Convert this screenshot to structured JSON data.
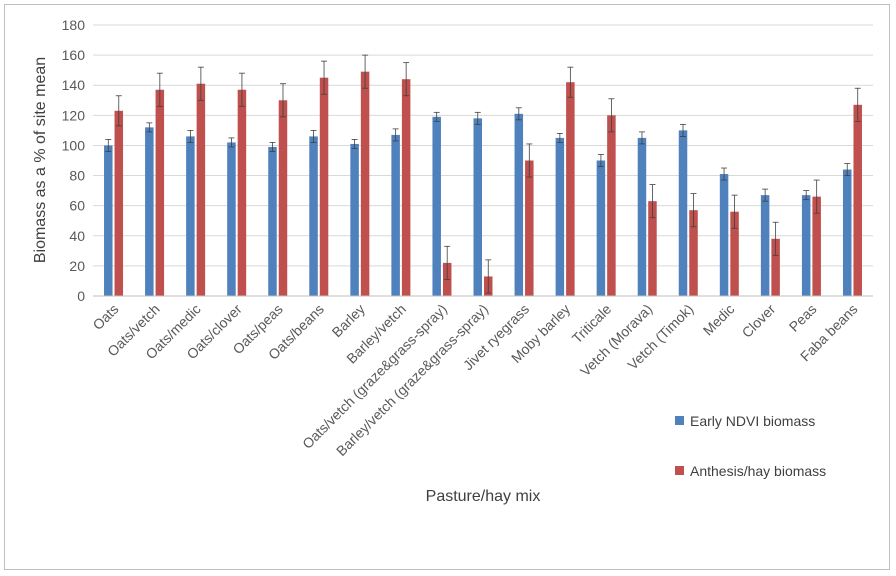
{
  "chart_data": {
    "type": "bar",
    "title": "",
    "xlabel": "Pasture/hay mix",
    "ylabel": "Biomass as a % of site mean",
    "ylim": [
      0,
      180
    ],
    "yticks": [
      0,
      20,
      40,
      60,
      80,
      100,
      120,
      140,
      160,
      180
    ],
    "grid": true,
    "legend_position": "right",
    "error_bars": true,
    "categories": [
      "Oats",
      "Oats/vetch",
      "Oats/medic",
      "Oats/clover",
      "Oats/peas",
      "Oats/beans",
      "Barley",
      "Barley/vetch",
      "Oats/vetch (graze&grass-spray)",
      "Barley/vetch (graze&grass-spray)",
      "Jivet ryegrass",
      "Moby barley",
      "Triticale",
      "Vetch (Morava)",
      "Vetch (Timok)",
      "Medic",
      "Clover",
      "Peas",
      "Faba beans"
    ],
    "series": [
      {
        "name": "Early NDVI biomass",
        "color": "#4f81bd",
        "values": [
          100,
          112,
          106,
          102,
          99,
          106,
          101,
          107,
          119,
          118,
          121,
          105,
          90,
          105,
          110,
          81,
          67,
          67,
          84
        ],
        "errors": [
          4,
          3,
          4,
          3,
          3,
          4,
          3,
          4,
          3,
          4,
          4,
          3,
          4,
          4,
          4,
          4,
          4,
          3,
          4
        ]
      },
      {
        "name": "Anthesis/hay biomass",
        "color": "#c0504d",
        "values": [
          123,
          137,
          141,
          137,
          130,
          145,
          149,
          144,
          22,
          13,
          90,
          142,
          120,
          63,
          57,
          56,
          38,
          66,
          127
        ],
        "errors": [
          10,
          11,
          11,
          11,
          11,
          11,
          11,
          11,
          11,
          11,
          11,
          10,
          11,
          11,
          11,
          11,
          11,
          11,
          11
        ]
      }
    ]
  }
}
